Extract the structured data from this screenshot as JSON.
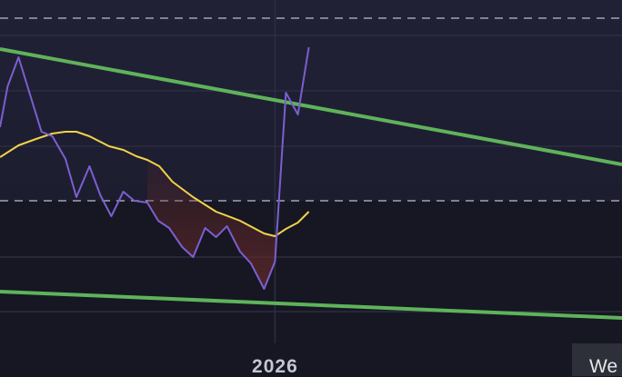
{
  "chart_data": {
    "type": "line",
    "title": "",
    "xlabel": "",
    "ylabel": "",
    "x_tick_labels": [
      {
        "x": 25.2,
        "label": "2026"
      }
    ],
    "grid": true,
    "series": [
      {
        "color": "#7b5fd0",
        "points": [
          [
            0,
            260
          ],
          [
            0.7,
            305
          ],
          [
            1.7,
            337
          ],
          [
            2.9,
            290
          ],
          [
            3.8,
            255
          ],
          [
            4.8,
            250
          ],
          [
            6,
            225
          ],
          [
            7,
            183
          ],
          [
            8.2,
            217
          ],
          [
            9.2,
            185
          ],
          [
            10.2,
            162
          ],
          [
            11.3,
            189
          ],
          [
            12.3,
            179
          ],
          [
            13.5,
            177
          ],
          [
            14.5,
            157
          ],
          [
            15.5,
            149
          ],
          [
            16.7,
            128
          ],
          [
            17.7,
            117
          ],
          [
            18.8,
            149
          ],
          [
            19.8,
            139
          ],
          [
            20.8,
            151
          ],
          [
            22,
            123
          ],
          [
            23,
            110
          ],
          [
            24.2,
            82
          ],
          [
            25.2,
            112
          ],
          [
            26.2,
            298
          ],
          [
            27.3,
            274
          ],
          [
            28.3,
            348
          ]
        ]
      },
      {
        "color": "#f2d34a",
        "points": [
          [
            0,
            227
          ],
          [
            1.7,
            240
          ],
          [
            3.3,
            247
          ],
          [
            4.8,
            253
          ],
          [
            6,
            255
          ],
          [
            7,
            255
          ],
          [
            8.2,
            250
          ],
          [
            10,
            239
          ],
          [
            11.3,
            235
          ],
          [
            12.5,
            228
          ],
          [
            13.5,
            224
          ],
          [
            14.6,
            217
          ],
          [
            15.8,
            200
          ],
          [
            17.7,
            183
          ],
          [
            19.8,
            167
          ],
          [
            22,
            157
          ],
          [
            24.2,
            143
          ],
          [
            25.2,
            140
          ],
          [
            26.2,
            148
          ],
          [
            27.3,
            155
          ],
          [
            28.3,
            167
          ]
        ]
      }
    ],
    "trendlines": [
      {
        "color": "#5fb35a",
        "from": [
          0,
          346
        ],
        "to": [
          57,
          219
        ]
      },
      {
        "color": "#5fb35a",
        "from": [
          0,
          79
        ],
        "to": [
          57,
          50
        ]
      }
    ],
    "dashed_levels": [
      380,
      179
    ],
    "grid_levels": [
      361,
      300,
      239,
      117,
      57
    ],
    "fill_below_color": "#6a2a2a",
    "vertical_marker_x": 25.2
  },
  "corner_label": "We"
}
